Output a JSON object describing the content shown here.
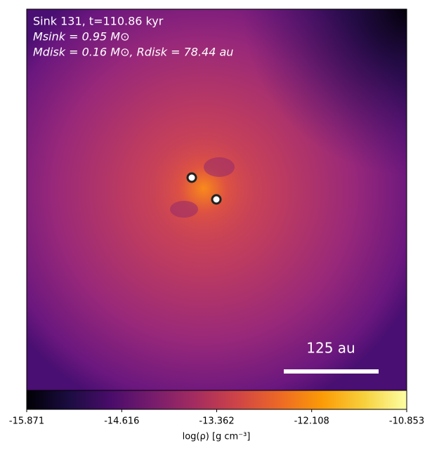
{
  "chart_data": {
    "type": "image",
    "annotations": [
      "Sink 131, t=110.86 kyr",
      "Msink = 0.95 M⊙",
      "Mdisk = 0.16 M⊙, Rdisk = 78.44 au"
    ],
    "scale_bar_label": "125 au",
    "colorbar_label": "log(ρ) [g cm⁻³]",
    "colormap": "inferno",
    "clim": [
      -15.871,
      -10.853
    ],
    "cticks": [
      -15.871,
      -14.616,
      -13.362,
      -12.108,
      -10.853
    ]
  }
}
